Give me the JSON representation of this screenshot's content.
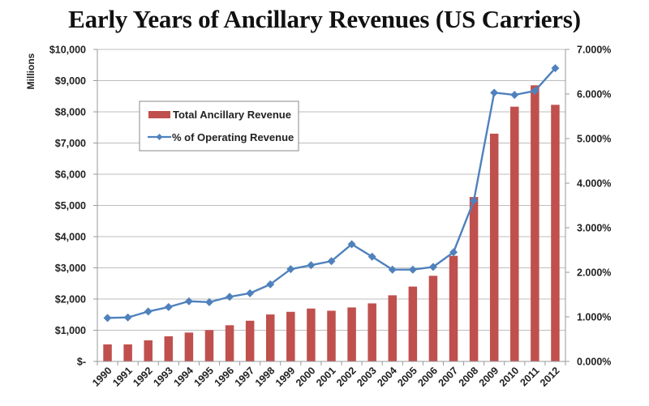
{
  "chart_data": {
    "type": "bar+line",
    "title": "Early Years of Ancillary Revenues (US Carriers)",
    "categories": [
      "1990",
      "1991",
      "1992",
      "1993",
      "1994",
      "1995",
      "1996",
      "1997",
      "1998",
      "1999",
      "2000",
      "2001",
      "2002",
      "2003",
      "2004",
      "2005",
      "2006",
      "2007",
      "2008",
      "2009",
      "2010",
      "2011",
      "2012"
    ],
    "series": [
      {
        "name": "Total Ancillary Revenue",
        "type": "bar",
        "axis": "left",
        "color": "#C0504D",
        "values": [
          545,
          545,
          675,
          805,
          925,
          1005,
          1160,
          1305,
          1505,
          1590,
          1695,
          1625,
          1730,
          1860,
          2120,
          2400,
          2745,
          3385,
          5270,
          7300,
          8165,
          8850,
          8225
        ]
      },
      {
        "name": "% of Operating Revenue",
        "type": "line",
        "axis": "right",
        "color": "#4F81BD",
        "marker": "diamond",
        "values": [
          0.976,
          0.987,
          1.12,
          1.22,
          1.35,
          1.33,
          1.45,
          1.53,
          1.73,
          2.07,
          2.16,
          2.25,
          2.63,
          2.35,
          2.06,
          2.06,
          2.12,
          2.45,
          3.61,
          6.03,
          5.98,
          6.07,
          6.58
        ]
      }
    ],
    "ylabel": "Millions",
    "ylim": [
      0,
      10000
    ],
    "yticks": [
      "$-",
      "$1,000",
      "$2,000",
      "$3,000",
      "$4,000",
      "$5,000",
      "$6,000",
      "$7,000",
      "$8,000",
      "$9,000",
      "$10,000"
    ],
    "y2lim": [
      0,
      7
    ],
    "y2ticks": [
      "0.000%",
      "1.000%",
      "2.000%",
      "3.000%",
      "4.000%",
      "5.000%",
      "6.000%",
      "7.000%"
    ],
    "xlabel": "",
    "grid": true,
    "legend": "upper-left inside plot"
  }
}
